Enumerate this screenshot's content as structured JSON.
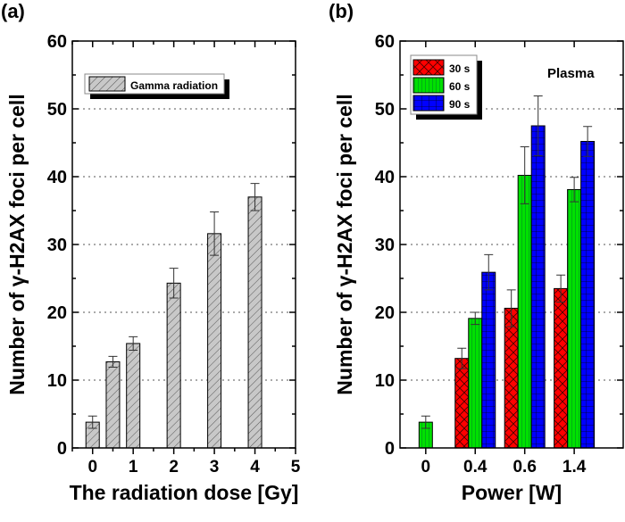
{
  "chart_data": [
    {
      "type": "bar",
      "panel_label": "(a)",
      "xlabel": "The radiation dose [Gy]",
      "ylabel": "Number of γ-H2AX foci per cell",
      "xlim": [
        -0.5,
        5
      ],
      "ylim": [
        0,
        60
      ],
      "xticks": [
        0,
        1,
        2,
        3,
        4,
        5
      ],
      "yticks": [
        0,
        10,
        20,
        30,
        40,
        50,
        60
      ],
      "grid": "horizontal dotted",
      "legend_position": "top-left",
      "series": [
        {
          "name": "Gamma radiation",
          "color": "#c8c8c8",
          "pattern": "diagonal-hatch",
          "x": [
            0,
            0.5,
            1,
            2,
            3,
            4
          ],
          "values": [
            3.8,
            12.7,
            15.4,
            24.3,
            31.6,
            37.0
          ],
          "errors": [
            0.9,
            0.8,
            1.0,
            2.2,
            3.2,
            2.0
          ]
        }
      ]
    },
    {
      "type": "bar",
      "panel_label": "(b)",
      "annotation": "Plasma",
      "xlabel": "Power [W]",
      "ylabel": "Number of γ-H2AX foci per cell",
      "categories": [
        "0",
        "0.4",
        "0.6",
        "1.4"
      ],
      "ylim": [
        0,
        60
      ],
      "yticks": [
        0,
        10,
        20,
        30,
        40,
        50,
        60
      ],
      "grid": "horizontal dotted",
      "legend_position": "top-left",
      "series": [
        {
          "name": "30 s",
          "color": "#ff0000",
          "pattern": "crosshatch",
          "values": [
            null,
            13.2,
            20.6,
            23.5
          ],
          "errors": [
            null,
            1.5,
            2.7,
            2.0
          ]
        },
        {
          "name": "60 s",
          "color": "#00e000",
          "pattern": "vertical-lines",
          "values": [
            3.8,
            19.1,
            40.2,
            38.1
          ],
          "errors": [
            0.9,
            0.9,
            4.2,
            1.8
          ]
        },
        {
          "name": "90 s",
          "color": "#0000ff",
          "pattern": "grid",
          "values": [
            null,
            25.9,
            47.5,
            45.2
          ],
          "errors": [
            null,
            2.6,
            4.4,
            2.2
          ]
        }
      ]
    }
  ]
}
